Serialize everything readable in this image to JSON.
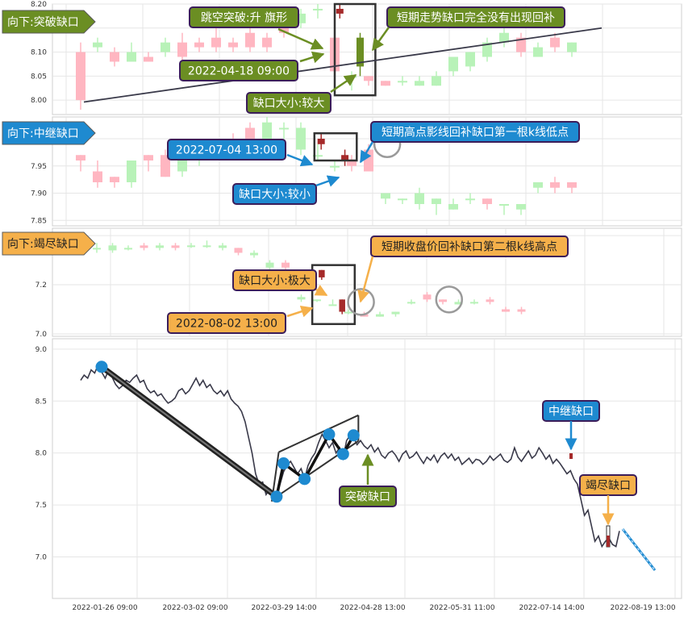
{
  "chart_data": [
    {
      "type": "candlestick",
      "panel": "top",
      "title": "向下:突破缺口",
      "ylim": [
        7.97,
        8.2
      ],
      "y_ticks": [
        "8.00",
        "8.05",
        "8.10",
        "8.15",
        "8.20"
      ],
      "candles": [
        {
          "o": 8.1,
          "c": 8.0,
          "h": 8.12,
          "l": 7.98
        },
        {
          "o": 8.11,
          "c": 8.12,
          "h": 8.13,
          "l": 8.1
        },
        {
          "o": 8.1,
          "c": 8.08,
          "h": 8.11,
          "l": 8.07
        },
        {
          "o": 8.08,
          "c": 8.1,
          "h": 8.12,
          "l": 8.08
        },
        {
          "o": 8.09,
          "c": 8.08,
          "h": 8.1,
          "l": 8.08
        },
        {
          "o": 8.1,
          "c": 8.12,
          "h": 8.13,
          "l": 8.09
        },
        {
          "o": 8.12,
          "c": 8.09,
          "h": 8.14,
          "l": 8.08
        },
        {
          "o": 8.12,
          "c": 8.11,
          "h": 8.13,
          "l": 8.1
        },
        {
          "o": 8.13,
          "c": 8.11,
          "h": 8.15,
          "l": 8.1
        },
        {
          "o": 8.12,
          "c": 8.11,
          "h": 8.13,
          "l": 8.1
        },
        {
          "o": 8.14,
          "c": 8.11,
          "h": 8.15,
          "l": 8.1
        },
        {
          "o": 8.13,
          "c": 8.11,
          "h": 8.14,
          "l": 8.1
        },
        {
          "o": 8.16,
          "c": 8.14,
          "h": 8.17,
          "l": 8.13
        },
        {
          "o": 8.16,
          "c": 8.18,
          "h": 8.19,
          "l": 8.15
        },
        {
          "o": 8.19,
          "c": 8.19,
          "h": 8.2,
          "l": 8.17
        },
        {
          "o": 8.13,
          "c": 8.06,
          "h": 8.15,
          "l": 8.05
        },
        {
          "o": 8.05,
          "c": 8.05,
          "h": 8.06,
          "l": 8.02
        },
        {
          "o": 8.05,
          "c": 8.04,
          "h": 8.05,
          "l": 8.03
        },
        {
          "o": 8.04,
          "c": 8.03,
          "h": 8.04,
          "l": 8.03
        },
        {
          "o": 8.04,
          "c": 8.04,
          "h": 8.05,
          "l": 8.03
        },
        {
          "o": 8.03,
          "c": 8.04,
          "h": 8.05,
          "l": 8.03
        },
        {
          "o": 8.03,
          "c": 8.05,
          "h": 8.06,
          "l": 8.03
        },
        {
          "o": 8.06,
          "c": 8.09,
          "h": 8.09,
          "l": 8.05
        },
        {
          "o": 8.07,
          "c": 8.1,
          "h": 8.1,
          "l": 8.06
        },
        {
          "o": 8.09,
          "c": 8.12,
          "h": 8.13,
          "l": 8.08
        },
        {
          "o": 8.12,
          "c": 8.14,
          "h": 8.15,
          "l": 8.11
        },
        {
          "o": 8.13,
          "c": 8.1,
          "h": 8.14,
          "l": 8.09
        },
        {
          "o": 8.09,
          "c": 8.11,
          "h": 8.12,
          "l": 8.09
        },
        {
          "o": 8.13,
          "c": 8.11,
          "h": 8.14,
          "l": 8.1
        },
        {
          "o": 8.1,
          "c": 8.12,
          "h": 8.12,
          "l": 8.09
        }
      ],
      "trend_line": [
        [
          7.5,
          7.996
        ],
        [
          26.5,
          8.15
        ]
      ],
      "highlight_candles": [
        {
          "index": 15.3,
          "o": 8.19,
          "c": 8.18,
          "h": 8.2,
          "l": 8.17
        },
        {
          "index": 16.5,
          "o": 8.07,
          "c": 8.13,
          "h": 8.14,
          "l": 8.05
        }
      ],
      "highlight_box": {
        "x0": 15,
        "x1": 17.4,
        "y0": 8.01,
        "y1": 8.2
      },
      "callouts": [
        {
          "text": "跳空突破:升    旗形",
          "style": "green"
        },
        {
          "text": "短期走势缺口完全没有出现回补",
          "style": "green"
        },
        {
          "text": "2022-04-18 09:00",
          "style": "green"
        },
        {
          "text": "缺口大小:较大",
          "style": "green"
        }
      ]
    },
    {
      "type": "candlestick",
      "panel": "mid",
      "title": "向下:中继缺口",
      "ylim": [
        7.84,
        8.04
      ],
      "y_ticks": [
        "7.85",
        "7.90",
        "7.95",
        "8.00"
      ],
      "candles": [
        {
          "o": 7.97,
          "c": 7.96,
          "h": 7.97,
          "l": 7.94
        },
        {
          "o": 7.94,
          "c": 7.92,
          "h": 7.96,
          "l": 7.91
        },
        {
          "o": 7.93,
          "c": 7.92,
          "h": 7.93,
          "l": 7.91
        },
        {
          "o": 7.92,
          "c": 7.96,
          "h": 7.96,
          "l": 7.91
        },
        {
          "o": 7.97,
          "c": 7.96,
          "h": 7.97,
          "l": 7.94
        },
        {
          "o": 7.97,
          "c": 7.93,
          "h": 7.98,
          "l": 7.93
        },
        {
          "o": 7.94,
          "c": 7.97,
          "h": 7.98,
          "l": 7.93
        },
        {
          "o": 7.96,
          "c": 7.98,
          "h": 8.0,
          "l": 7.95
        },
        {
          "o": 7.97,
          "c": 7.97,
          "h": 7.98,
          "l": 7.96
        },
        {
          "o": 8.0,
          "c": 7.98,
          "h": 8.01,
          "l": 7.97
        },
        {
          "o": 8.02,
          "c": 7.99,
          "h": 8.03,
          "l": 7.98
        },
        {
          "o": 8.0,
          "c": 8.03,
          "h": 8.04,
          "l": 7.99
        },
        {
          "o": 8.02,
          "c": 8.02,
          "h": 8.03,
          "l": 8.0
        },
        {
          "o": 7.98,
          "c": 8.02,
          "h": 8.03,
          "l": 7.97
        },
        {
          "o": 7.97,
          "c": 7.97,
          "h": 7.99,
          "l": 7.96
        },
        {
          "o": 7.95,
          "c": 7.95,
          "h": 7.96,
          "l": 7.94
        },
        {
          "o": 7.96,
          "c": 7.95,
          "h": 7.97,
          "l": 7.94
        },
        {
          "o": 7.98,
          "c": 7.94,
          "h": 7.99,
          "l": 7.94
        },
        {
          "o": 7.89,
          "c": 7.9,
          "h": 7.9,
          "l": 7.88
        },
        {
          "o": 7.89,
          "c": 7.89,
          "h": 7.89,
          "l": 7.88
        },
        {
          "o": 7.88,
          "c": 7.9,
          "h": 7.91,
          "l": 7.87
        },
        {
          "o": 7.88,
          "c": 7.89,
          "h": 7.89,
          "l": 7.86
        },
        {
          "o": 7.87,
          "c": 7.88,
          "h": 7.89,
          "l": 7.87
        },
        {
          "o": 7.89,
          "c": 7.89,
          "h": 7.9,
          "l": 7.88
        },
        {
          "o": 7.89,
          "c": 7.88,
          "h": 7.89,
          "l": 7.87
        },
        {
          "o": 7.88,
          "c": 7.88,
          "h": 7.88,
          "l": 7.86
        },
        {
          "o": 7.87,
          "c": 7.88,
          "h": 7.88,
          "l": 7.86
        },
        {
          "o": 7.91,
          "c": 7.92,
          "h": 7.92,
          "l": 7.9
        },
        {
          "o": 7.92,
          "c": 7.91,
          "h": 7.93,
          "l": 7.9
        },
        {
          "o": 7.92,
          "c": 7.91,
          "h": 7.92,
          "l": 7.9
        }
      ],
      "highlight_candles": [
        {
          "index": 14.2,
          "o": 8.0,
          "c": 7.99,
          "h": 8.01,
          "l": 7.98
        },
        {
          "index": 15.6,
          "o": 7.97,
          "c": 7.96,
          "h": 7.98,
          "l": 7.95
        }
      ],
      "highlight_box": {
        "x0": 13.8,
        "x1": 16.3,
        "y0": 7.96,
        "y1": 8.01
      },
      "circle": {
        "index": 18.1,
        "y": 7.99
      },
      "callouts": [
        {
          "text": "2022-07-04 13:00",
          "style": "blue"
        },
        {
          "text": "短期高点影线回补缺口第一根k线低点",
          "style": "blue"
        },
        {
          "text": "缺口大小:较小",
          "style": "blue"
        }
      ]
    },
    {
      "type": "candlestick",
      "panel": "low",
      "title": "向下:竭尽缺口",
      "ylim": [
        6.99,
        7.43
      ],
      "y_ticks": [
        "7.0",
        "7.2",
        "7.4"
      ],
      "candles": [
        {
          "o": 7.35,
          "c": 7.35,
          "h": 7.37,
          "l": 7.33
        },
        {
          "o": 7.34,
          "c": 7.36,
          "h": 7.37,
          "l": 7.33
        },
        {
          "o": 7.35,
          "c": 7.35,
          "h": 7.36,
          "l": 7.34
        },
        {
          "o": 7.36,
          "c": 7.35,
          "h": 7.37,
          "l": 7.34
        },
        {
          "o": 7.35,
          "c": 7.36,
          "h": 7.37,
          "l": 7.34
        },
        {
          "o": 7.36,
          "c": 7.35,
          "h": 7.37,
          "l": 7.34
        },
        {
          "o": 7.36,
          "c": 7.36,
          "h": 7.37,
          "l": 7.35
        },
        {
          "o": 7.36,
          "c": 7.36,
          "h": 7.38,
          "l": 7.35
        },
        {
          "o": 7.35,
          "c": 7.36,
          "h": 7.37,
          "l": 7.34
        },
        {
          "o": 7.35,
          "c": 7.33,
          "h": 7.35,
          "l": 7.32
        },
        {
          "o": 7.32,
          "c": 7.33,
          "h": 7.34,
          "l": 7.31
        },
        {
          "o": 7.27,
          "c": 7.29,
          "h": 7.3,
          "l": 7.26
        },
        {
          "o": 7.29,
          "c": 7.27,
          "h": 7.3,
          "l": 7.25
        },
        {
          "o": 7.14,
          "c": 7.15,
          "h": 7.16,
          "l": 7.13
        },
        {
          "o": 7.14,
          "c": 7.14,
          "h": 7.14,
          "l": 7.13
        },
        {
          "o": 7.12,
          "c": 7.12,
          "h": 7.14,
          "l": 7.12
        },
        {
          "o": 7.09,
          "c": 7.09,
          "h": 7.1,
          "l": 7.08
        },
        {
          "o": 7.08,
          "c": 7.07,
          "h": 7.09,
          "l": 7.07
        },
        {
          "o": 7.07,
          "c": 7.08,
          "h": 7.09,
          "l": 7.07
        },
        {
          "o": 7.08,
          "c": 7.09,
          "h": 7.09,
          "l": 7.07
        },
        {
          "o": 7.13,
          "c": 7.13,
          "h": 7.14,
          "l": 7.12
        },
        {
          "o": 7.16,
          "c": 7.14,
          "h": 7.17,
          "l": 7.13
        },
        {
          "o": 7.14,
          "c": 7.13,
          "h": 7.14,
          "l": 7.12
        },
        {
          "o": 7.12,
          "c": 7.13,
          "h": 7.14,
          "l": 7.12
        },
        {
          "o": 7.13,
          "c": 7.13,
          "h": 7.14,
          "l": 7.12
        },
        {
          "o": 7.14,
          "c": 7.13,
          "h": 7.15,
          "l": 7.12
        },
        {
          "o": 7.1,
          "c": 7.09,
          "h": 7.11,
          "l": 7.09
        },
        {
          "o": 7.1,
          "c": 7.09,
          "h": 7.11,
          "l": 7.08
        }
      ],
      "highlight_candles": [
        {
          "index": 14.3,
          "o": 7.26,
          "c": 7.23,
          "h": 7.26,
          "l": 7.22
        },
        {
          "index": 15.6,
          "o": 7.14,
          "c": 7.09,
          "h": 7.14,
          "l": 7.08
        }
      ],
      "highlight_box": {
        "x0": 13.7,
        "x1": 16.4,
        "y0": 7.04,
        "y1": 7.28
      },
      "circles": [
        {
          "index": 16.8,
          "y": 7.13
        },
        {
          "index": 22.4,
          "y": 7.14
        }
      ],
      "callouts": [
        {
          "text": "缺口大小:极大",
          "style": "orange"
        },
        {
          "text": "短期收盘价回补缺口第二根k线高点",
          "style": "orange"
        },
        {
          "text": "2022-08-02 13:00",
          "style": "orange"
        }
      ]
    },
    {
      "type": "line",
      "panel": "bottom",
      "ylim": [
        6.6,
        9.1
      ],
      "y_ticks": [
        "7.0",
        "7.5",
        "8.0",
        "8.5",
        "9.0"
      ],
      "x_tick_labels": [
        "2022-01-26 09:00",
        "2022-03-02 09:00",
        "2022-03-29 14:00",
        "2022-04-28 13:00",
        "2022-05-31 11:00",
        "2022-07-14 14:00",
        "2022-08-19 13:00"
      ],
      "series": [
        {
          "values": [
            8.7,
            8.75,
            8.72,
            8.8,
            8.77,
            8.85,
            8.78,
            8.72,
            8.8,
            8.73,
            8.66,
            8.62,
            8.65,
            8.7,
            8.68,
            8.72,
            8.75,
            8.68,
            8.7,
            8.62,
            8.58,
            8.6,
            8.55,
            8.57,
            8.52,
            8.48,
            8.5,
            8.53,
            8.6,
            8.62,
            8.57,
            8.6,
            8.66,
            8.72,
            8.65,
            8.7,
            8.63,
            8.66,
            8.6,
            8.57,
            8.6,
            8.55,
            8.6,
            8.52,
            8.48,
            8.45,
            8.4,
            8.3,
            8.15,
            8.0,
            7.8,
            7.7,
            7.72,
            7.6,
            7.65,
            7.55,
            7.58,
            7.7,
            7.82,
            7.88,
            7.92,
            7.86,
            7.8,
            7.85,
            7.75,
            7.88,
            7.95,
            8.0,
            8.1,
            8.18,
            8.12,
            8.05,
            8.1,
            8.0,
            8.05,
            7.95,
            8.12,
            8.17,
            8.15,
            8.08,
            8.12,
            8.07,
            8.04,
            8.08,
            8.01,
            8.05,
            7.98,
            7.95,
            8.0,
            8.02,
            7.98,
            7.92,
            7.99,
            8.02,
            7.95,
            7.97,
            8.01,
            7.95,
            7.9,
            7.96,
            7.93,
            7.98,
            7.91,
            7.97,
            8.0,
            7.95,
            7.99,
            7.93,
            7.96,
            7.89,
            7.92,
            7.95,
            7.9,
            7.94,
            7.93,
            7.89,
            7.92,
            7.97,
            7.93,
            7.96,
            7.99,
            7.93,
            7.91,
            7.94,
            8.05,
            7.96,
            7.92,
            7.97,
            8.02,
            7.95,
            7.98,
            8.05,
            8.0,
            7.94,
            7.98,
            7.9,
            7.94,
            7.9,
            7.85,
            7.8,
            7.83,
            7.75,
            7.7,
            7.55,
            7.4,
            7.45,
            7.3,
            7.15,
            7.2,
            7.1,
            7.15,
            7.18,
            7.12,
            7.1,
            7.25
          ]
        }
      ],
      "pattern_points": [
        {
          "i": 6,
          "y": 8.83
        },
        {
          "i": 56,
          "y": 7.58
        },
        {
          "i": 58,
          "y": 7.9
        },
        {
          "i": 64,
          "y": 7.75
        },
        {
          "i": 71,
          "y": 8.18
        },
        {
          "i": 75,
          "y": 7.99
        },
        {
          "i": 78,
          "y": 8.17
        }
      ],
      "callouts": [
        {
          "text": "突破缺口",
          "style": "green"
        },
        {
          "text": "中继缺口",
          "style": "blue"
        },
        {
          "text": "竭尽缺口",
          "style": "orange"
        }
      ]
    }
  ],
  "colors": {
    "up": "#b8f2b8",
    "down": "#ffb6c1",
    "highlight_up": "#6b8e23",
    "highlight_down": "#a52a2a",
    "green_box": "#6b8e23",
    "blue_box": "#1e8ad0",
    "orange_box": "#f5b04a",
    "border": "#3b1d5a"
  }
}
